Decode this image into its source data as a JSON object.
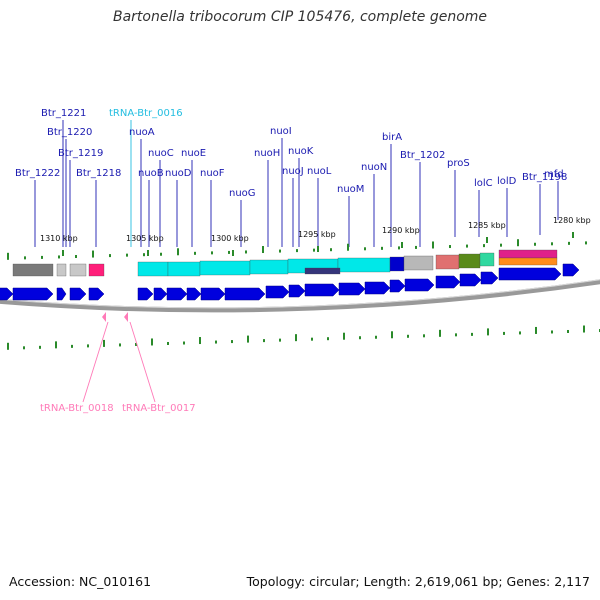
{
  "title": "Bartonella tribocorum CIP 105476, complete genome",
  "footer": {
    "accession": "Accession: NC_010161",
    "summary": "Topology: circular; Length: 2,619,061 bp; Genes: 2,117"
  },
  "kbp_ticks": [
    "1310 kbp",
    "1305 kbp",
    "1300 kbp",
    "1295 kbp",
    "1290 kbp",
    "1285 kbp",
    "1280 kbp"
  ],
  "gene_labels": [
    "Btr_1222",
    "Btr_1221",
    "Btr_1220",
    "Btr_1219",
    "Btr_1218",
    "tRNA-Btr_0016",
    "nuoA",
    "nuoB",
    "nuoC",
    "nuoD",
    "nuoE",
    "nuoF",
    "nuoG",
    "nuoH",
    "nuoI",
    "nuoJ",
    "nuoK",
    "nuoL",
    "nuoM",
    "nuoN",
    "birA",
    "Btr_1202",
    "proS",
    "lolC",
    "lolD",
    "Btr_1198",
    "mfd"
  ],
  "trna_lower_labels": [
    "tRNA-Btr_0018",
    "tRNA-Btr_0017"
  ],
  "colors": {
    "gene_arrow": "#0000dd",
    "nuo_operon": "#00e8e8",
    "trna_upper": "#22bde0",
    "trna_lower": "#ff7ab8",
    "backbone": "#808080",
    "gc_tick": "#2a8a2a",
    "label": "#1a1ab0"
  }
}
